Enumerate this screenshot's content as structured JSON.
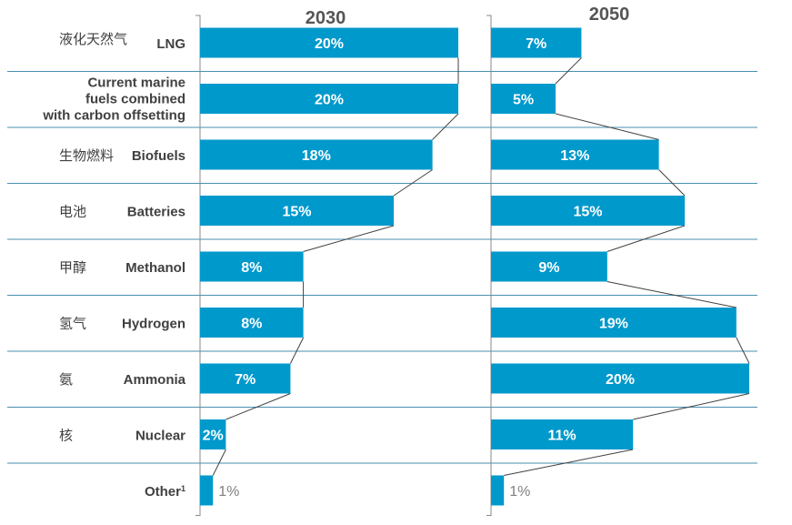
{
  "chart_data": {
    "type": "bar",
    "orientation": "horizontal",
    "panels": [
      "2030",
      "2050"
    ],
    "categories": [
      {
        "en": "LNG",
        "zh": "液化天然气"
      },
      {
        "en": "Current marine fuels combined with carbon offsetting",
        "en_lines": [
          "Current marine",
          "fuels combined",
          "with carbon offsetting"
        ],
        "zh": ""
      },
      {
        "en": "Biofuels",
        "zh": "生物燃料"
      },
      {
        "en": "Batteries",
        "zh": "电池"
      },
      {
        "en": "Methanol",
        "zh": "甲醇"
      },
      {
        "en": "Hydrogen",
        "zh": "氢气"
      },
      {
        "en": "Ammonia",
        "zh": "氨"
      },
      {
        "en": "Nuclear",
        "zh": "核"
      },
      {
        "en": "Other",
        "superscript": "1",
        "zh": ""
      }
    ],
    "series": [
      {
        "name": "2030",
        "values": [
          20,
          20,
          18,
          15,
          8,
          8,
          7,
          2,
          1
        ],
        "labels": [
          "20%",
          "20%",
          "18%",
          "15%",
          "8%",
          "8%",
          "7%",
          "2%",
          "1%"
        ]
      },
      {
        "name": "2050",
        "values": [
          7,
          5,
          13,
          15,
          9,
          19,
          20,
          11,
          1
        ],
        "labels": [
          "7%",
          "5%",
          "13%",
          "15%",
          "9%",
          "19%",
          "20%",
          "11%",
          "1%"
        ]
      }
    ],
    "xlim": [
      0,
      20
    ],
    "unit": "%",
    "colors": {
      "bar": "#0099cc",
      "separator": "#4a8fb0",
      "connector": "#404040",
      "label_outside": "#808080"
    }
  }
}
